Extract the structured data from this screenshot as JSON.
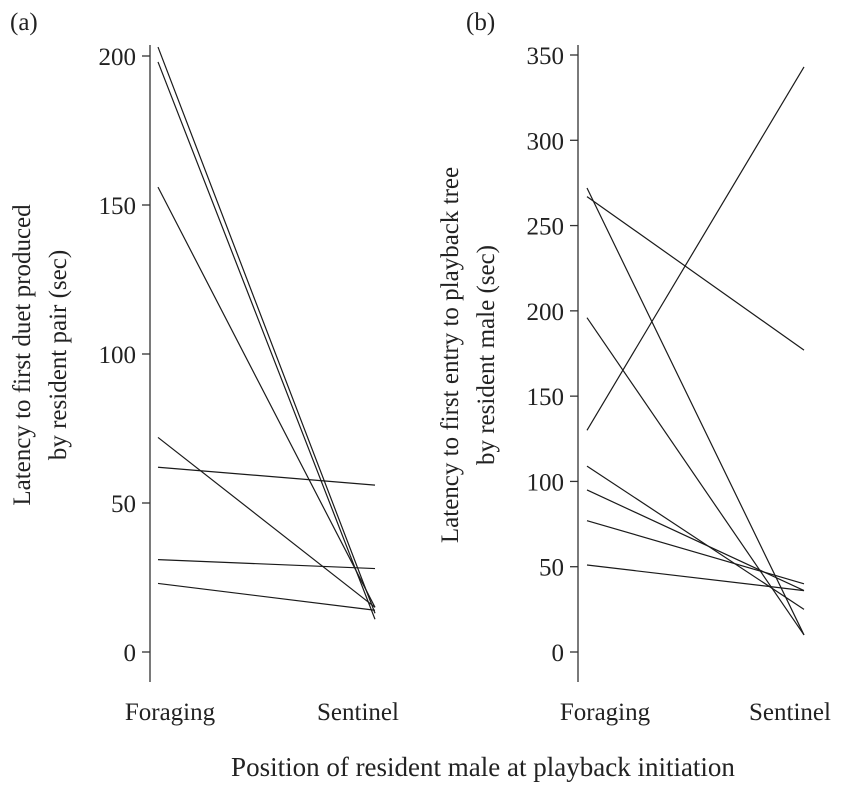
{
  "figure": {
    "xlabel": "Position of resident male at playback initiation"
  },
  "chart_data": [
    {
      "type": "line",
      "panel_label": "(a)",
      "categories": [
        "Foraging",
        "Sentinel"
      ],
      "ylabel_lines": [
        "Latency to first duet produced",
        "by resident pair (sec)"
      ],
      "ylim": [
        0,
        200
      ],
      "yticks": [
        0,
        50,
        100,
        150,
        200
      ],
      "grid": false,
      "legend": "none",
      "series": [
        {
          "values": [
            203,
            13
          ]
        },
        {
          "values": [
            198,
            11
          ]
        },
        {
          "values": [
            156,
            15
          ]
        },
        {
          "values": [
            72,
            15
          ]
        },
        {
          "values": [
            62,
            56
          ]
        },
        {
          "values": [
            31,
            28
          ]
        },
        {
          "values": [
            23,
            14
          ]
        }
      ]
    },
    {
      "type": "line",
      "panel_label": "(b)",
      "categories": [
        "Foraging",
        "Sentinel"
      ],
      "ylabel_lines": [
        "Latency to first entry to playback tree",
        "by resident male (sec)"
      ],
      "ylim": [
        0,
        350
      ],
      "yticks": [
        0,
        50,
        100,
        150,
        200,
        250,
        300,
        350
      ],
      "grid": false,
      "legend": "none",
      "series": [
        {
          "values": [
            272,
            10
          ]
        },
        {
          "values": [
            267,
            177
          ]
        },
        {
          "values": [
            196,
            10
          ]
        },
        {
          "values": [
            130,
            343
          ]
        },
        {
          "values": [
            109,
            25
          ]
        },
        {
          "values": [
            95,
            36
          ]
        },
        {
          "values": [
            77,
            40
          ]
        },
        {
          "values": [
            51,
            36
          ]
        }
      ]
    }
  ]
}
